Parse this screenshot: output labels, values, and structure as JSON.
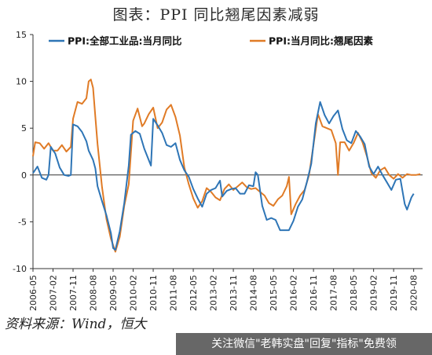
{
  "title": "图表：PPI 同比翘尾因素减弱",
  "source": "资料来源：Wind，恒大",
  "banner": "关注微信\"老韩实盘\"回复\"指标\"免费领",
  "colors": {
    "series1": "#2e75b6",
    "series2": "#e07b26",
    "axis": "#333333"
  },
  "chart_data": {
    "type": "line",
    "ylim": [
      -10,
      15
    ],
    "yticks": [
      -10,
      -5,
      0,
      5,
      10,
      15
    ],
    "xlim": [
      "2006-05",
      "2020-12"
    ],
    "xticks": [
      "2006-05",
      "2007-02",
      "2007-11",
      "2008-08",
      "2009-05",
      "2010-02",
      "2010-11",
      "2011-08",
      "2012-05",
      "2013-02",
      "2013-11",
      "2014-08",
      "2015-05",
      "2016-02",
      "2016-11",
      "2017-08",
      "2018-05",
      "2019-02",
      "2019-11",
      "2020-08"
    ],
    "legend_position": "top",
    "series": [
      {
        "name": "PPI:全部工业品:当月同比",
        "points": [
          [
            "2006-05",
            0.2
          ],
          [
            "2006-07",
            0.9
          ],
          [
            "2006-09",
            -0.3
          ],
          [
            "2006-11",
            -0.5
          ],
          [
            "2006-12",
            0.0
          ],
          [
            "2007-01",
            3.0
          ],
          [
            "2007-03",
            2.3
          ],
          [
            "2007-05",
            0.8
          ],
          [
            "2007-07",
            0.0
          ],
          [
            "2007-09",
            -0.1
          ],
          [
            "2007-10",
            0.0
          ],
          [
            "2007-11",
            5.4
          ],
          [
            "2008-01",
            5.2
          ],
          [
            "2008-03",
            4.6
          ],
          [
            "2008-05",
            3.6
          ],
          [
            "2008-06",
            2.6
          ],
          [
            "2008-08",
            1.6
          ],
          [
            "2008-09",
            0.7
          ],
          [
            "2008-10",
            -1.2
          ],
          [
            "2008-12",
            -2.8
          ],
          [
            "2009-02",
            -4.3
          ],
          [
            "2009-04",
            -6.2
          ],
          [
            "2009-05",
            -7.8
          ],
          [
            "2009-06",
            -8.0
          ],
          [
            "2009-08",
            -6.0
          ],
          [
            "2009-10",
            -3.0
          ],
          [
            "2009-12",
            1.0
          ],
          [
            "2010-01",
            4.3
          ],
          [
            "2010-03",
            4.7
          ],
          [
            "2010-05",
            4.4
          ],
          [
            "2010-07",
            2.8
          ],
          [
            "2010-09",
            1.6
          ],
          [
            "2010-10",
            1.0
          ],
          [
            "2010-11",
            6.0
          ],
          [
            "2011-01",
            5.3
          ],
          [
            "2011-03",
            4.5
          ],
          [
            "2011-05",
            3.2
          ],
          [
            "2011-07",
            3.0
          ],
          [
            "2011-09",
            3.4
          ],
          [
            "2011-11",
            1.6
          ],
          [
            "2012-01",
            0.5
          ],
          [
            "2012-03",
            -0.2
          ],
          [
            "2012-05",
            -1.5
          ],
          [
            "2012-07",
            -2.5
          ],
          [
            "2012-09",
            -3.4
          ],
          [
            "2012-11",
            -2.0
          ],
          [
            "2013-01",
            -1.6
          ],
          [
            "2013-03",
            -1.4
          ],
          [
            "2013-05",
            -0.6
          ],
          [
            "2013-06",
            -2.3
          ],
          [
            "2013-08",
            -1.7
          ],
          [
            "2013-10",
            -1.5
          ],
          [
            "2013-12",
            -1.4
          ],
          [
            "2014-02",
            -2.0
          ],
          [
            "2014-04",
            -2.0
          ],
          [
            "2014-06",
            -1.1
          ],
          [
            "2014-08",
            -1.2
          ],
          [
            "2014-09",
            0.3
          ],
          [
            "2014-10",
            0.0
          ],
          [
            "2014-12",
            -3.3
          ],
          [
            "2015-02",
            -4.8
          ],
          [
            "2015-04",
            -4.6
          ],
          [
            "2015-06",
            -4.8
          ],
          [
            "2015-08",
            -5.9
          ],
          [
            "2015-10",
            -5.9
          ],
          [
            "2015-12",
            -5.9
          ],
          [
            "2016-02",
            -4.9
          ],
          [
            "2016-04",
            -3.4
          ],
          [
            "2016-06",
            -2.6
          ],
          [
            "2016-08",
            -0.8
          ],
          [
            "2016-10",
            1.2
          ],
          [
            "2016-12",
            5.5
          ],
          [
            "2017-02",
            7.8
          ],
          [
            "2017-04",
            6.4
          ],
          [
            "2017-06",
            5.5
          ],
          [
            "2017-08",
            6.3
          ],
          [
            "2017-10",
            6.9
          ],
          [
            "2017-12",
            4.9
          ],
          [
            "2018-02",
            3.7
          ],
          [
            "2018-04",
            3.4
          ],
          [
            "2018-06",
            4.7
          ],
          [
            "2018-08",
            4.1
          ],
          [
            "2018-10",
            3.3
          ],
          [
            "2018-12",
            0.9
          ],
          [
            "2019-02",
            0.1
          ],
          [
            "2019-04",
            0.9
          ],
          [
            "2019-06",
            0.0
          ],
          [
            "2019-08",
            -0.8
          ],
          [
            "2019-10",
            -1.6
          ],
          [
            "2019-12",
            -0.5
          ],
          [
            "2020-02",
            -0.4
          ],
          [
            "2020-04",
            -3.1
          ],
          [
            "2020-05",
            -3.7
          ],
          [
            "2020-07",
            -2.4
          ],
          [
            "2020-08",
            -2.0
          ]
        ]
      },
      {
        "name": "PPI:当月同比:翘尾因素",
        "points": [
          [
            "2006-05",
            2.0
          ],
          [
            "2006-06",
            3.5
          ],
          [
            "2006-08",
            3.4
          ],
          [
            "2006-10",
            2.8
          ],
          [
            "2006-12",
            3.4
          ],
          [
            "2007-02",
            2.6
          ],
          [
            "2007-04",
            2.6
          ],
          [
            "2007-06",
            3.2
          ],
          [
            "2007-08",
            2.5
          ],
          [
            "2007-10",
            3.0
          ],
          [
            "2007-11",
            6.0
          ],
          [
            "2008-01",
            7.8
          ],
          [
            "2008-03",
            7.6
          ],
          [
            "2008-05",
            8.2
          ],
          [
            "2008-06",
            10.0
          ],
          [
            "2008-07",
            10.2
          ],
          [
            "2008-08",
            9.3
          ],
          [
            "2008-09",
            6.2
          ],
          [
            "2008-10",
            3.3
          ],
          [
            "2008-12",
            -1.3
          ],
          [
            "2009-02",
            -4.7
          ],
          [
            "2009-04",
            -6.8
          ],
          [
            "2009-06",
            -8.2
          ],
          [
            "2009-08",
            -6.6
          ],
          [
            "2009-10",
            -3.3
          ],
          [
            "2009-12",
            -1.0
          ],
          [
            "2010-02",
            5.8
          ],
          [
            "2010-04",
            7.1
          ],
          [
            "2010-06",
            5.2
          ],
          [
            "2010-07",
            5.5
          ],
          [
            "2010-09",
            6.5
          ],
          [
            "2010-11",
            7.2
          ],
          [
            "2011-01",
            5.0
          ],
          [
            "2011-03",
            5.6
          ],
          [
            "2011-05",
            7.0
          ],
          [
            "2011-07",
            7.5
          ],
          [
            "2011-09",
            6.2
          ],
          [
            "2011-11",
            4.2
          ],
          [
            "2012-01",
            0.8
          ],
          [
            "2012-03",
            -1.0
          ],
          [
            "2012-05",
            -2.5
          ],
          [
            "2012-07",
            -3.5
          ],
          [
            "2012-09",
            -2.8
          ],
          [
            "2012-11",
            -1.4
          ],
          [
            "2013-01",
            -1.8
          ],
          [
            "2013-03",
            -2.4
          ],
          [
            "2013-05",
            -2.7
          ],
          [
            "2013-07",
            -1.5
          ],
          [
            "2013-09",
            -1.0
          ],
          [
            "2013-11",
            -1.6
          ],
          [
            "2014-01",
            -1.2
          ],
          [
            "2014-03",
            -0.8
          ],
          [
            "2014-05",
            -1.3
          ],
          [
            "2014-07",
            -1.5
          ],
          [
            "2014-09",
            -1.4
          ],
          [
            "2014-11",
            -1.8
          ],
          [
            "2015-01",
            -2.2
          ],
          [
            "2015-03",
            -3.0
          ],
          [
            "2015-05",
            -3.3
          ],
          [
            "2015-07",
            -2.6
          ],
          [
            "2015-09",
            -2.2
          ],
          [
            "2015-11",
            -1.2
          ],
          [
            "2015-12",
            -0.2
          ],
          [
            "2016-01",
            -4.2
          ],
          [
            "2016-03",
            -3.1
          ],
          [
            "2016-05",
            -2.2
          ],
          [
            "2016-07",
            -1.6
          ],
          [
            "2016-09",
            0.0
          ],
          [
            "2016-11",
            3.2
          ],
          [
            "2017-01",
            6.5
          ],
          [
            "2017-03",
            5.2
          ],
          [
            "2017-05",
            5.0
          ],
          [
            "2017-07",
            4.8
          ],
          [
            "2017-09",
            3.4
          ],
          [
            "2017-10",
            0.0
          ],
          [
            "2017-11",
            3.5
          ],
          [
            "2018-01",
            3.5
          ],
          [
            "2018-03",
            2.6
          ],
          [
            "2018-05",
            3.4
          ],
          [
            "2018-07",
            4.5
          ],
          [
            "2018-09",
            3.5
          ],
          [
            "2018-11",
            2.0
          ],
          [
            "2019-01",
            0.2
          ],
          [
            "2019-03",
            -0.3
          ],
          [
            "2019-05",
            0.5
          ],
          [
            "2019-07",
            0.8
          ],
          [
            "2019-09",
            0.0
          ],
          [
            "2019-11",
            -0.4
          ],
          [
            "2020-01",
            0.1
          ],
          [
            "2020-03",
            -0.3
          ],
          [
            "2020-05",
            0.1
          ],
          [
            "2020-07",
            0.0
          ],
          [
            "2020-09",
            0.0
          ],
          [
            "2020-11",
            0.1
          ]
        ]
      }
    ]
  }
}
